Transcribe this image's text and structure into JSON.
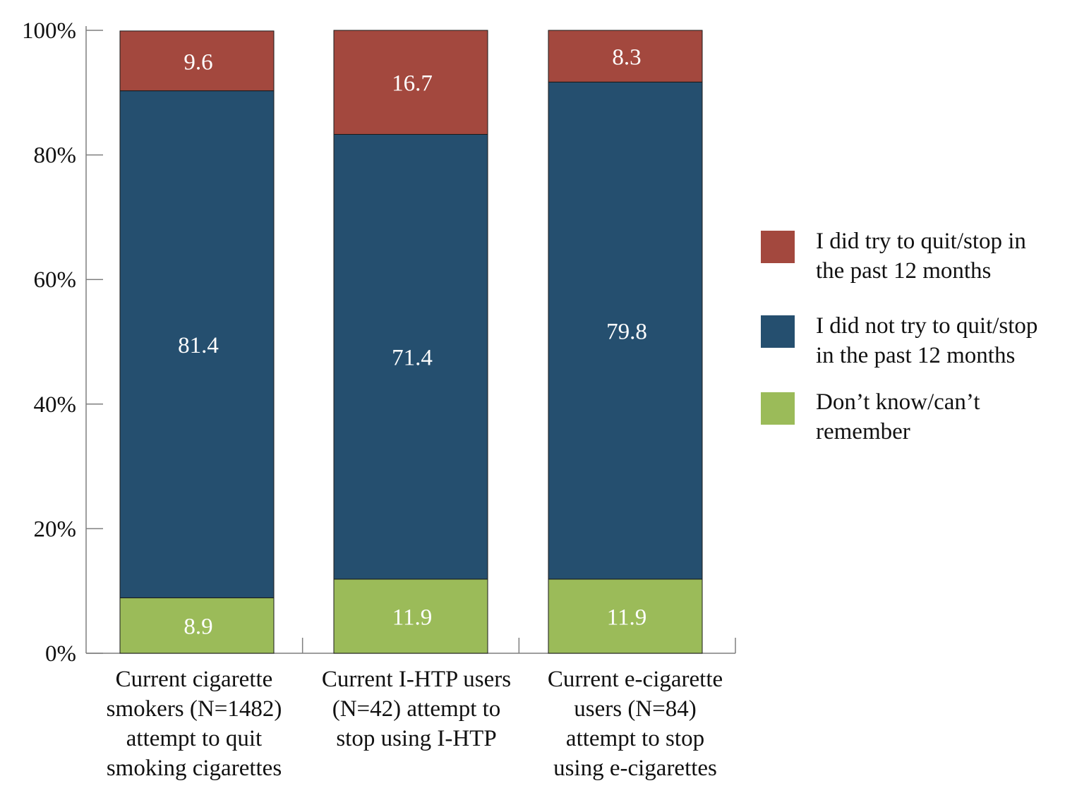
{
  "chart_data": {
    "type": "bar",
    "stacked": true,
    "categories": [
      "Current cigarette\nsmokers (N=1482)\nattempt to quit\nsmoking cigarettes",
      "Current I-HTP users\n(N=42) attempt to\nstop using I-HTP",
      "Current e-cigarette\nusers (N=84)\nattempt to stop\nusing e-cigarettes"
    ],
    "series": [
      {
        "name": "Don’t know/can’t\nremember",
        "color": "#9bbb59",
        "values": [
          8.9,
          11.9,
          11.9
        ]
      },
      {
        "name": "I did not try to quit/stop\nin the past 12 months",
        "color": "#254f6f",
        "values": [
          81.4,
          71.4,
          79.8
        ]
      },
      {
        "name": "I did try to quit/stop in\nthe past 12 months",
        "color": "#a3483e",
        "values": [
          9.6,
          16.7,
          8.3
        ]
      }
    ],
    "data_labels": [
      [
        "8.9",
        "11.9",
        "11.9"
      ],
      [
        "81.4",
        "71.4",
        "79.8"
      ],
      [
        "9.6",
        "16.7",
        "8.3"
      ]
    ],
    "yticks": [
      "0%",
      "20%",
      "40%",
      "60%",
      "80%",
      "100%"
    ],
    "ylim": [
      0,
      100
    ],
    "legend_position": "right",
    "legend_order": [
      2,
      1,
      0
    ],
    "grid": false
  }
}
